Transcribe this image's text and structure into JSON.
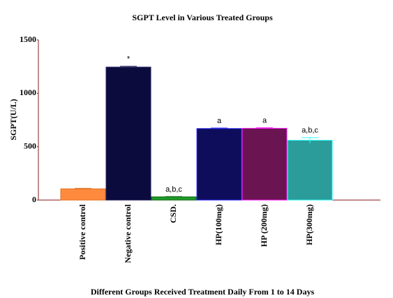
{
  "chart_data": {
    "type": "bar",
    "title": "SGPT Level in Various Treated Groups",
    "x_label": "Different Groups Received Treatment Daily From 1 to 14 Days",
    "y_label": "SGPT(U/L)",
    "categories": [
      "Positive control",
      "Negative control",
      "CSD.",
      "HP(100mg)",
      "HP (200mg)",
      "HP(300mg)"
    ],
    "values": [
      105,
      1245,
      30,
      670,
      672,
      560
    ],
    "errors": [
      5,
      8,
      3,
      5,
      5,
      25
    ],
    "annotations": [
      null,
      "*",
      "a,b,c",
      "a",
      "a",
      "a,b,c"
    ],
    "colors": [
      "#ff8a3d",
      "#0b0b3e",
      "#1f9a2a",
      "#0d0d5c",
      "#6a1552",
      "#2c9c9a"
    ],
    "edge_colors": [
      "#e07020",
      "#20205a",
      "#0d6a10",
      "#3030ff",
      "#ff20ff",
      "#30ffff"
    ],
    "ylim": [
      0,
      1500
    ],
    "yticks": [
      0,
      500,
      1000,
      1500
    ],
    "grid": false
  }
}
